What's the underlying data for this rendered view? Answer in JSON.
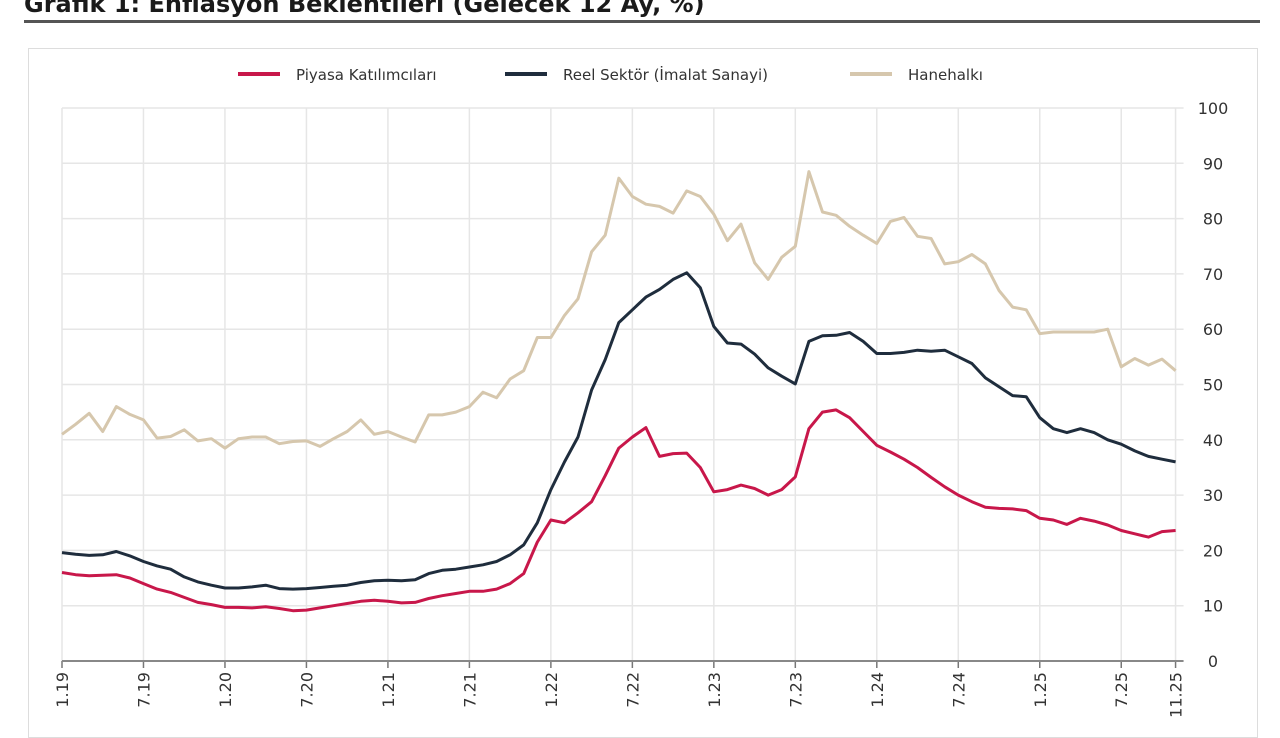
{
  "chart_data": {
    "type": "line",
    "title": "Grafik 1: Enflasyon Beklentileri (Gelecek 12 Ay, %)",
    "xlabel": "",
    "ylabel": "",
    "ylim": [
      0,
      100
    ],
    "yticks": [
      0,
      10,
      20,
      30,
      40,
      50,
      60,
      70,
      80,
      90,
      100
    ],
    "y_axis_side": "right",
    "grid": true,
    "legend_position": "top-center",
    "x_start": "1.19",
    "x_frequency": "monthly",
    "xtick_labels": [
      {
        "index": 0,
        "label": "1.19"
      },
      {
        "index": 6,
        "label": "7.19"
      },
      {
        "index": 12,
        "label": "1.20"
      },
      {
        "index": 18,
        "label": "7.20"
      },
      {
        "index": 24,
        "label": "1.21"
      },
      {
        "index": 30,
        "label": "7.21"
      },
      {
        "index": 36,
        "label": "1.22"
      },
      {
        "index": 42,
        "label": "7.22"
      },
      {
        "index": 48,
        "label": "1.23"
      },
      {
        "index": 54,
        "label": "7.23"
      },
      {
        "index": 60,
        "label": "1.24"
      },
      {
        "index": 66,
        "label": "7.24"
      },
      {
        "index": 72,
        "label": "1.25"
      },
      {
        "index": 78,
        "label": "7.25"
      },
      {
        "index": 82,
        "label": "11.25"
      }
    ],
    "series": [
      {
        "name": "Piyasa Katılımcıları",
        "color": "#c8174a",
        "values": [
          16,
          15.6,
          15.4,
          15.5,
          15.6,
          15,
          14,
          13,
          12.4,
          11.5,
          10.6,
          10.2,
          9.7,
          9.7,
          9.6,
          9.8,
          9.5,
          9.1,
          9.2,
          9.6,
          10,
          10.4,
          10.8,
          11,
          10.8,
          10.5,
          10.6,
          11.3,
          11.8,
          12.2,
          12.6,
          12.6,
          13,
          14,
          15.8,
          21.5,
          25.5,
          25,
          26.8,
          28.8,
          33.5,
          38.5,
          40.5,
          42.2,
          37,
          37.5,
          37.6,
          35,
          30.6,
          31,
          31.8,
          31.2,
          30,
          31,
          33.3,
          42,
          45,
          45.4,
          44,
          41.5,
          39,
          37.8,
          36.5,
          35,
          33.2,
          31.5,
          30,
          28.8,
          27.8,
          27.6,
          27.5,
          27.2,
          25.8,
          25.5,
          24.7,
          25.8,
          25.3,
          24.6,
          23.6,
          23,
          22.4,
          23.4,
          23.6
        ]
      },
      {
        "name": "Reel Sektör (İmalat Sanayi)",
        "color": "#1f2d3d",
        "values": [
          19.6,
          19.3,
          19.1,
          19.2,
          19.8,
          19,
          18,
          17.2,
          16.6,
          15.2,
          14.3,
          13.7,
          13.2,
          13.2,
          13.4,
          13.7,
          13.1,
          13,
          13.1,
          13.3,
          13.5,
          13.7,
          14.2,
          14.5,
          14.6,
          14.5,
          14.7,
          15.8,
          16.4,
          16.6,
          17,
          17.4,
          18,
          19.2,
          21,
          25,
          31,
          36,
          40.5,
          49,
          54.5,
          61.2,
          63.5,
          65.8,
          67.2,
          69,
          70.2,
          67.5,
          60.5,
          57.5,
          57.3,
          55.5,
          53,
          51.5,
          50.1,
          57.8,
          58.8,
          58.9,
          59.4,
          57.8,
          55.6,
          55.6,
          55.8,
          56.2,
          56,
          56.2,
          55,
          53.8,
          51.2,
          49.6,
          48,
          47.8,
          44,
          42,
          41.3,
          42,
          41.3,
          40,
          39.2,
          38,
          37,
          36.5,
          36
        ]
      },
      {
        "name": "Hanehalkı",
        "color": "#d6c7ad",
        "values": [
          41,
          42.8,
          44.8,
          41.5,
          46,
          44.6,
          43.6,
          40.3,
          40.6,
          41.8,
          39.8,
          40.2,
          38.5,
          40.2,
          40.5,
          40.5,
          39.3,
          39.7,
          39.8,
          38.8,
          40.2,
          41.5,
          43.6,
          41,
          41.5,
          40.5,
          39.6,
          44.5,
          44.5,
          45,
          46,
          48.6,
          47.6,
          51,
          52.5,
          58.5,
          58.5,
          62.5,
          65.5,
          74,
          77,
          87.3,
          84,
          82.6,
          82.2,
          81,
          85,
          84,
          80.8,
          76,
          79,
          72,
          69,
          73,
          75,
          88.5,
          81.2,
          80.6,
          78.6,
          77,
          75.5,
          79.5,
          80.2,
          76.8,
          76.4,
          71.8,
          72.2,
          73.5,
          71.8,
          67,
          64,
          63.5,
          59.2,
          59.5,
          59.5,
          59.5,
          59.5,
          60,
          53.2,
          54.7,
          53.5,
          54.6,
          52.5
        ]
      }
    ]
  }
}
